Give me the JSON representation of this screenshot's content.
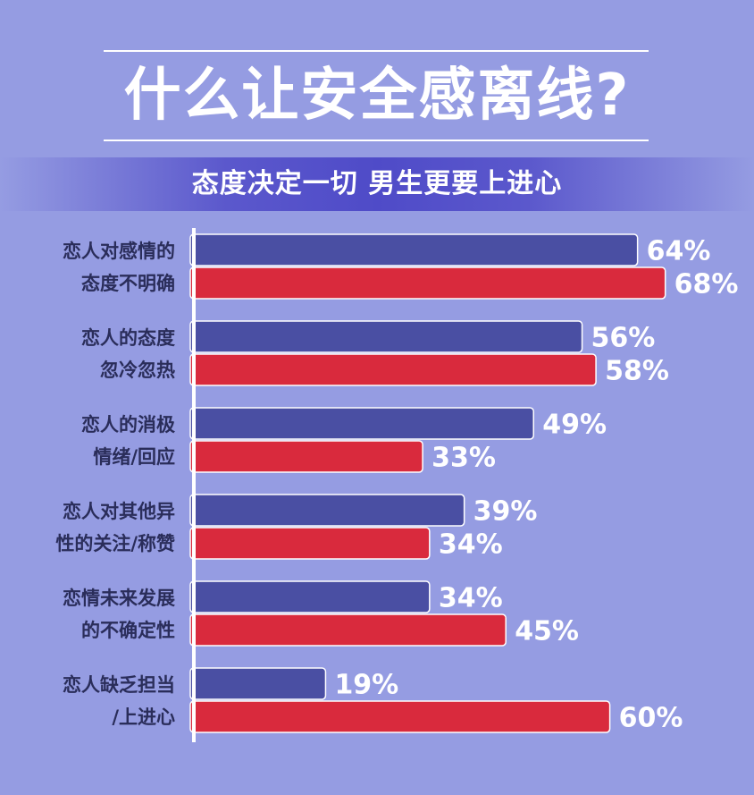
{
  "title": "什么让安全感离线?",
  "subtitle": "态度决定一切  男生更要上进心",
  "chart_data": {
    "type": "bar",
    "orientation": "horizontal",
    "categories": [
      [
        "恋人对感情的",
        "态度不明确"
      ],
      [
        "恋人的态度",
        "忽冷忽热"
      ],
      [
        "恋人的消极",
        "情绪/回应"
      ],
      [
        "恋人对其他异",
        "性的关注/称赞"
      ],
      [
        "恋情未来发展",
        "的不确定性"
      ],
      [
        "恋人缺乏担当",
        "/上进心"
      ]
    ],
    "series": [
      {
        "color": "#4a4fa3",
        "values": [
          64,
          56,
          49,
          39,
          34,
          19
        ],
        "labels": [
          "64%",
          "56%",
          "49%",
          "39%",
          "34%",
          "19%"
        ]
      },
      {
        "color": "#d92a3d",
        "values": [
          68,
          58,
          33,
          34,
          45,
          60
        ],
        "labels": [
          "68%",
          "58%",
          "33%",
          "34%",
          "45%",
          "60%"
        ]
      }
    ],
    "xlim": [
      0,
      100
    ],
    "legend": "none",
    "grid": false
  }
}
